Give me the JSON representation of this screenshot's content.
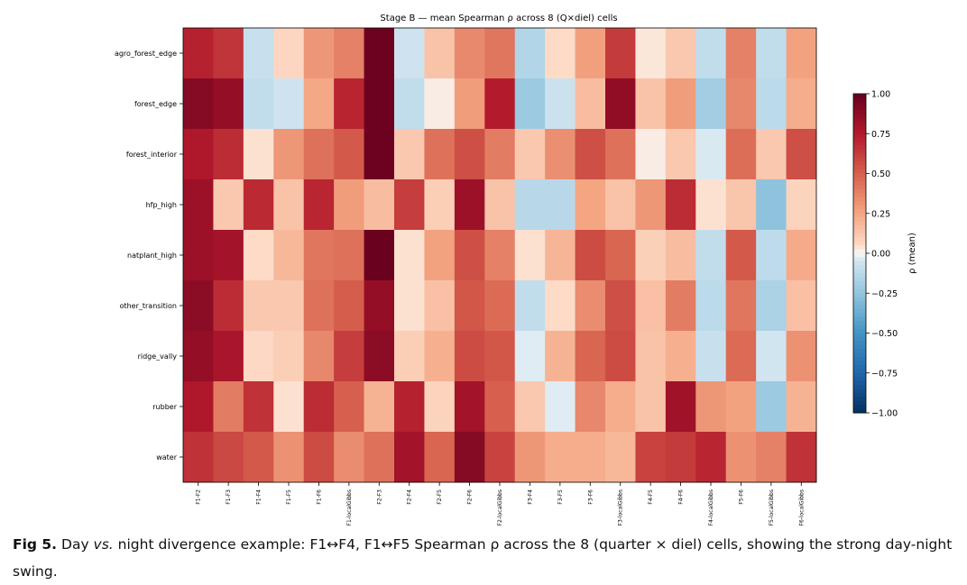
{
  "chart_data": {
    "type": "heatmap",
    "title": "Stage B — mean Spearman ρ across 8 (Q×diel) cells",
    "rows": [
      "agro_forest_edge",
      "forest_edge",
      "forest_interior",
      "hfp_high",
      "natplant_high",
      "other_transition",
      "ridge_vally",
      "rubber",
      "water"
    ],
    "columns": [
      "F1-F2",
      "F1-F3",
      "F1-F4",
      "F1-F5",
      "F1-F6",
      "F1-localGibbs",
      "F2-F3",
      "F2-F4",
      "F2-F5",
      "F2-F6",
      "F2-localGibbs",
      "F3-F4",
      "F3-F5",
      "F3-F6",
      "F3-localGibbs",
      "F4-F5",
      "F4-F6",
      "F4-localGibbs",
      "F5-F6",
      "F5-localGibbs",
      "F6-localGibbs"
    ],
    "values": [
      [
        0.72,
        0.65,
        -0.08,
        0.07,
        0.3,
        0.38,
        0.98,
        -0.06,
        0.14,
        0.35,
        0.42,
        -0.15,
        0.05,
        0.27,
        0.63,
        0.03,
        0.12,
        -0.1,
        0.38,
        -0.1,
        0.26
      ],
      [
        0.9,
        0.85,
        -0.1,
        -0.06,
        0.24,
        0.71,
        0.98,
        -0.1,
        0.02,
        0.28,
        0.74,
        -0.22,
        -0.07,
        0.16,
        0.86,
        0.14,
        0.28,
        -0.2,
        0.36,
        -0.12,
        0.22
      ],
      [
        0.76,
        0.68,
        0.04,
        0.3,
        0.44,
        0.52,
        0.98,
        0.12,
        0.44,
        0.56,
        0.4,
        0.12,
        0.33,
        0.56,
        0.44,
        0.02,
        0.12,
        -0.04,
        0.45,
        0.12,
        0.56
      ],
      [
        0.82,
        0.12,
        0.69,
        0.14,
        0.7,
        0.28,
        0.16,
        0.62,
        0.1,
        0.82,
        0.14,
        -0.13,
        -0.13,
        0.25,
        0.14,
        0.3,
        0.68,
        0.04,
        0.13,
        -0.26,
        0.08
      ],
      [
        0.82,
        0.8,
        0.05,
        0.18,
        0.42,
        0.44,
        0.99,
        0.04,
        0.26,
        0.56,
        0.38,
        0.04,
        0.19,
        0.57,
        0.48,
        0.09,
        0.16,
        -0.1,
        0.52,
        -0.11,
        0.23
      ],
      [
        0.88,
        0.68,
        0.12,
        0.12,
        0.44,
        0.51,
        0.85,
        0.04,
        0.15,
        0.53,
        0.46,
        -0.1,
        0.05,
        0.34,
        0.56,
        0.15,
        0.4,
        -0.12,
        0.42,
        -0.17,
        0.15
      ],
      [
        0.85,
        0.78,
        0.06,
        0.1,
        0.36,
        0.62,
        0.88,
        0.1,
        0.21,
        0.57,
        0.53,
        -0.03,
        0.2,
        0.48,
        0.57,
        0.14,
        0.21,
        -0.08,
        0.46,
        -0.05,
        0.32
      ],
      [
        0.76,
        0.4,
        0.66,
        0.04,
        0.68,
        0.5,
        0.2,
        0.72,
        0.08,
        0.8,
        0.5,
        0.12,
        -0.03,
        0.36,
        0.22,
        0.14,
        0.81,
        0.3,
        0.26,
        -0.22,
        0.2
      ],
      [
        0.66,
        0.58,
        0.52,
        0.32,
        0.57,
        0.34,
        0.44,
        0.8,
        0.48,
        0.9,
        0.6,
        0.3,
        0.22,
        0.22,
        0.18,
        0.6,
        0.63,
        0.7,
        0.32,
        0.38,
        0.66
      ]
    ],
    "colorbar": {
      "label": "ρ (mean)",
      "min": -1.0,
      "max": 1.0,
      "ticks": [
        "1.00",
        "0.75",
        "0.50",
        "0.25",
        "0.00",
        "−0.25",
        "−0.50",
        "−0.75",
        "−1.00"
      ],
      "tick_values": [
        1.0,
        0.75,
        0.5,
        0.25,
        0.0,
        -0.25,
        -0.5,
        -0.75,
        -1.0
      ]
    },
    "colormap": "RdBu_r"
  },
  "caption": {
    "label": "Fig 5.",
    "text_before_italic": " Day ",
    "italic": "vs.",
    "text_after_italic": " night divergence example: F1↔F4, F1↔F5 Spearman ρ across the 8 (quarter × diel) cells, showing the strong day-night swing."
  }
}
